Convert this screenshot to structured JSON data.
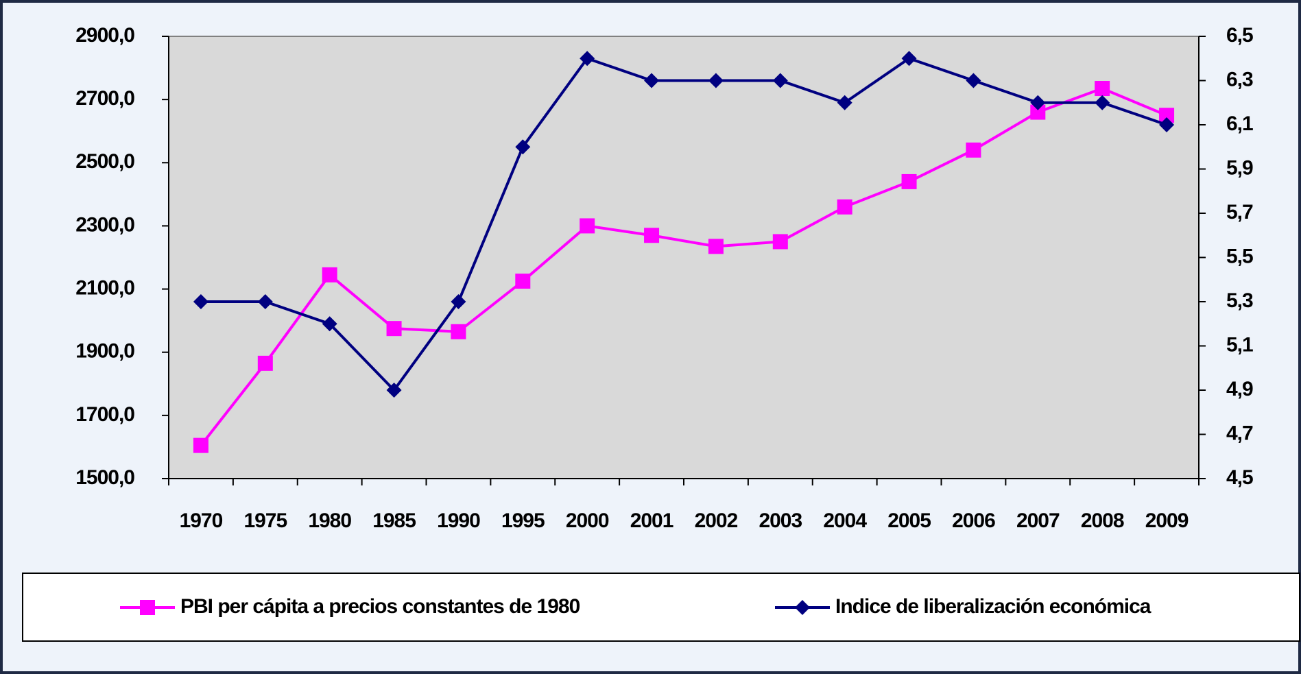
{
  "chart_data": {
    "type": "line",
    "categories": [
      "1970",
      "1975",
      "1980",
      "1985",
      "1990",
      "1995",
      "2000",
      "2001",
      "2002",
      "2003",
      "2004",
      "2005",
      "2006",
      "2007",
      "2008",
      "2009"
    ],
    "series": [
      {
        "name": "PBI per cápita a precios constantes de 1980",
        "color": "#ff00ff",
        "marker": "square",
        "values": [
          1605,
          1865,
          2145,
          1975,
          1965,
          2125,
          2300,
          2270,
          2235,
          2250,
          2360,
          2440,
          2540,
          2660,
          2735,
          2650
        ]
      },
      {
        "name": "Indice de liberalización económica",
        "color": "#000080",
        "marker": "diamond",
        "axis": "y2",
        "values": [
          5.3,
          5.3,
          5.2,
          4.9,
          5.3,
          6.0,
          6.4,
          6.3,
          6.3,
          6.3,
          6.2,
          6.4,
          6.3,
          6.2,
          6.2,
          6.1
        ]
      }
    ],
    "ylim": [
      1500,
      2900
    ],
    "yticks": [
      {
        "value": 1500,
        "label": "1500,0"
      },
      {
        "value": 1700,
        "label": "1700,0"
      },
      {
        "value": 1900,
        "label": "1900,0"
      },
      {
        "value": 2100,
        "label": "2100,0"
      },
      {
        "value": 2300,
        "label": "2300,0"
      },
      {
        "value": 2500,
        "label": "2500,0"
      },
      {
        "value": 2700,
        "label": "2700,0"
      },
      {
        "value": 2900,
        "label": "2900,0"
      }
    ],
    "y2lim": [
      4.5,
      6.5
    ],
    "y2ticks": [
      {
        "value": 4.5,
        "label": "4,5"
      },
      {
        "value": 4.7,
        "label": "4,7"
      },
      {
        "value": 4.9,
        "label": "4,9"
      },
      {
        "value": 5.1,
        "label": "5,1"
      },
      {
        "value": 5.3,
        "label": "5,3"
      },
      {
        "value": 5.5,
        "label": "5,5"
      },
      {
        "value": 5.7,
        "label": "5,7"
      },
      {
        "value": 5.9,
        "label": "5,9"
      },
      {
        "value": 6.1,
        "label": "6,1"
      },
      {
        "value": 6.3,
        "label": "6,3"
      },
      {
        "value": 6.5,
        "label": "6,5"
      }
    ],
    "grid": false,
    "legend": "bottom"
  }
}
